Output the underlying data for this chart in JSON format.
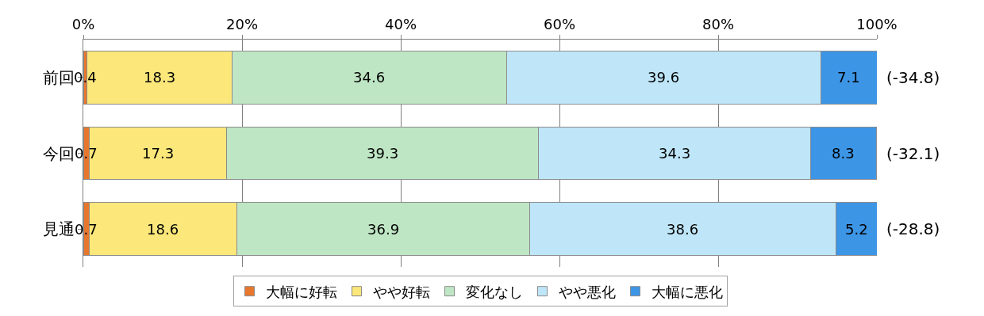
{
  "chart_data": {
    "type": "bar",
    "orientation": "horizontal",
    "stacked": true,
    "categories": [
      "前回",
      "今回",
      "見通"
    ],
    "series": [
      {
        "name": "大幅に好転",
        "color": "#e8772e",
        "values": [
          0.4,
          0.7,
          0.7
        ]
      },
      {
        "name": "やや好転",
        "color": "#fbe77a",
        "values": [
          18.3,
          17.3,
          18.6
        ]
      },
      {
        "name": "変化なし",
        "color": "#bfe6c4",
        "values": [
          34.6,
          39.3,
          36.9
        ]
      },
      {
        "name": "やや悪化",
        "color": "#bfe6f8",
        "values": [
          39.6,
          34.3,
          38.6
        ]
      },
      {
        "name": "大幅に悪化",
        "color": "#3d95e6",
        "values": [
          7.1,
          8.3,
          5.2
        ]
      }
    ],
    "xlim": [
      0,
      100
    ],
    "xticks": [
      {
        "value": 0,
        "label": "0%"
      },
      {
        "value": 20,
        "label": "20%"
      },
      {
        "value": 40,
        "label": "40%"
      },
      {
        "value": 60,
        "label": "60%"
      },
      {
        "value": 80,
        "label": "80%"
      },
      {
        "value": 100,
        "label": "100%"
      }
    ],
    "data_labels": true,
    "annotations": [
      "(-34.8)",
      "(-32.1)",
      "(-28.8)"
    ],
    "grid": "x",
    "legend": "bottom"
  }
}
